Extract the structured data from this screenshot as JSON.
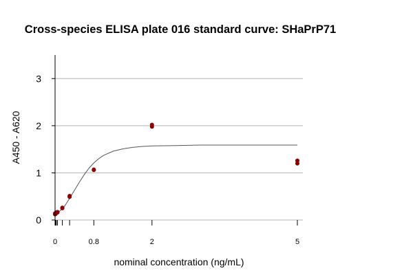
{
  "chart_data": {
    "type": "scatter",
    "title": "Cross-species ELISA plate 016 standard curve: SHaPrP71",
    "xlabel": "nominal concentration (ng/mL)",
    "ylabel": "A450 - A620",
    "xlim": [
      0,
      5
    ],
    "ylim": [
      0,
      3.5
    ],
    "x_tick_labels": [
      "0",
      "0.8",
      "2",
      "5"
    ],
    "x_tick_values": [
      0,
      0.8,
      2,
      5
    ],
    "x_minor_ticks": [
      0.0125,
      0.025,
      0.05,
      0.15,
      0.3
    ],
    "y_ticks": [
      0,
      1,
      2,
      3
    ],
    "grid": "horizontal",
    "point_color": "#8b0000",
    "curve_color": "#555555",
    "points": [
      {
        "x": 0,
        "y": 0.12
      },
      {
        "x": 0,
        "y": 0.14
      },
      {
        "x": 0.0125,
        "y": 0.13
      },
      {
        "x": 0.0125,
        "y": 0.15
      },
      {
        "x": 0.025,
        "y": 0.15
      },
      {
        "x": 0.025,
        "y": 0.16
      },
      {
        "x": 0.05,
        "y": 0.16
      },
      {
        "x": 0.05,
        "y": 0.17
      },
      {
        "x": 0.15,
        "y": 0.25
      },
      {
        "x": 0.15,
        "y": 0.26
      },
      {
        "x": 0.3,
        "y": 0.49
      },
      {
        "x": 0.3,
        "y": 0.51
      },
      {
        "x": 0.8,
        "y": 1.06
      },
      {
        "x": 0.8,
        "y": 1.07
      },
      {
        "x": 2,
        "y": 1.98
      },
      {
        "x": 2,
        "y": 2.02
      },
      {
        "x": 5,
        "y": 1.2
      },
      {
        "x": 5,
        "y": 1.26
      }
    ],
    "fit_curve": [
      {
        "x": 0,
        "y": 0.13
      },
      {
        "x": 0.1,
        "y": 0.19
      },
      {
        "x": 0.2,
        "y": 0.3
      },
      {
        "x": 0.3,
        "y": 0.46
      },
      {
        "x": 0.4,
        "y": 0.63
      },
      {
        "x": 0.5,
        "y": 0.8
      },
      {
        "x": 0.6,
        "y": 0.96
      },
      {
        "x": 0.7,
        "y": 1.1
      },
      {
        "x": 0.8,
        "y": 1.21
      },
      {
        "x": 0.9,
        "y": 1.3
      },
      {
        "x": 1.0,
        "y": 1.37
      },
      {
        "x": 1.2,
        "y": 1.46
      },
      {
        "x": 1.4,
        "y": 1.51
      },
      {
        "x": 1.6,
        "y": 1.54
      },
      {
        "x": 1.8,
        "y": 1.56
      },
      {
        "x": 2.0,
        "y": 1.57
      },
      {
        "x": 2.5,
        "y": 1.58
      },
      {
        "x": 3.0,
        "y": 1.59
      },
      {
        "x": 4.0,
        "y": 1.59
      },
      {
        "x": 5.0,
        "y": 1.59
      }
    ]
  }
}
